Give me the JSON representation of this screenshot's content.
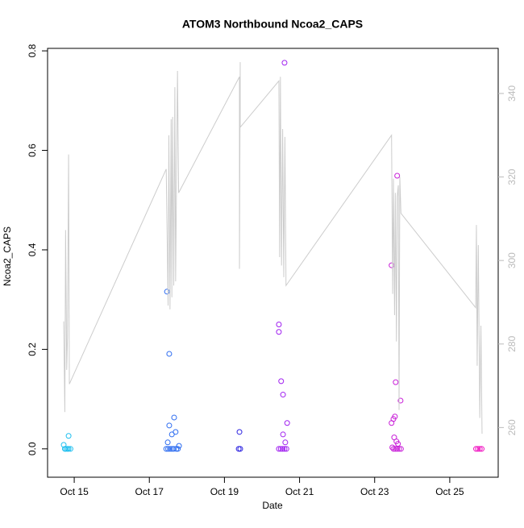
{
  "chart_data": {
    "type": "scatter",
    "title": "ATOM3 Northbound Ncoa2_CAPS",
    "x_label": "Date",
    "y_label": "Ncoa2_CAPS",
    "xlim": [
      14.29,
      26.29
    ],
    "xticks": [
      {
        "value": 15,
        "label": "Oct 15"
      },
      {
        "value": 17,
        "label": "Oct 17"
      },
      {
        "value": 19,
        "label": "Oct 19"
      },
      {
        "value": 21,
        "label": "Oct 21"
      },
      {
        "value": 23,
        "label": "Oct 23"
      },
      {
        "value": 25,
        "label": "Oct 25"
      }
    ],
    "ylim": [
      -0.057,
      0.805
    ],
    "yticks": [
      {
        "value": 0,
        "label": "0.0"
      },
      0.2,
      0.4,
      0.6,
      0.8
    ],
    "y2lim": [
      248.1,
      350.8
    ],
    "y2ticks": [
      260,
      280,
      300,
      320,
      340
    ],
    "y2_color": "#bbbbbb",
    "series": [
      {
        "type": "scatter",
        "color": "#1ebfef",
        "x": [
          14.72,
          14.75,
          14.78,
          14.82,
          14.85,
          14.85,
          14.9
        ],
        "values": [
          0.008,
          0,
          0,
          0,
          0,
          0.026,
          0
        ]
      },
      {
        "type": "scatter",
        "color": "#2a6af0",
        "x": [
          17.47,
          17.53,
          17.49,
          17.53,
          17.6,
          17.66,
          17.7,
          17.79,
          17.45,
          17.5,
          17.55,
          17.6,
          17.65,
          17.72,
          17.76
        ],
        "values": [
          0.316,
          0.191,
          0.013,
          0.047,
          0.029,
          0.063,
          0.034,
          0.006,
          0,
          0,
          0,
          0,
          0,
          0,
          0
        ]
      },
      {
        "type": "scatter",
        "color": "#2a20e0",
        "x": [
          19.4,
          19.38,
          19.42
        ],
        "values": [
          0.034,
          0,
          0
        ]
      },
      {
        "type": "scatter",
        "color": "#a020f0",
        "x": [
          20.45,
          20.45,
          20.51,
          20.56,
          20.56,
          20.62,
          20.67,
          20.6,
          20.45,
          20.5,
          20.55,
          20.6,
          20.65
        ],
        "values": [
          0.25,
          0.235,
          0.136,
          0.109,
          0.029,
          0.013,
          0.052,
          0.776,
          0,
          0,
          0,
          0,
          0
        ]
      },
      {
        "type": "scatter",
        "color": "#c81ed8",
        "x": [
          23.45,
          23.6,
          23.56,
          23.69,
          23.54,
          23.5,
          23.45,
          23.52,
          23.58,
          23.62,
          23.47,
          23.5,
          23.55,
          23.6,
          23.65,
          23.7
        ],
        "values": [
          0.369,
          0.549,
          0.134,
          0.097,
          0.065,
          0.06,
          0.052,
          0.023,
          0.015,
          0.01,
          0.003,
          0,
          0,
          0,
          0,
          0
        ]
      },
      {
        "type": "scatter",
        "color": "#f010c0",
        "x": [
          25.7,
          25.75,
          25.8,
          25.85
        ],
        "values": [
          0,
          0,
          0,
          0
        ]
      },
      {
        "type": "line",
        "axis": "y2",
        "color": "#cccccc",
        "x": [
          14.72,
          14.75,
          14.77,
          14.8,
          14.82,
          14.85,
          14.87,
          17.45,
          17.5,
          17.52,
          17.55,
          17.58,
          17.6,
          17.62,
          17.65,
          17.68,
          17.7,
          17.75,
          17.78,
          19.4,
          19.4,
          19.42,
          19.42,
          20.45,
          20.47,
          20.49,
          20.52,
          20.55,
          20.58,
          20.61,
          20.64,
          23.45,
          23.48,
          23.5,
          23.53,
          23.55,
          23.58,
          23.6,
          23.63,
          23.65,
          23.67,
          23.7,
          25.69,
          25.71,
          25.73,
          25.76,
          25.8,
          25.83,
          25.86
        ],
        "values": [
          285.4,
          263.7,
          307.3,
          273.8,
          281.5,
          325.4,
          270.4,
          321.9,
          289.2,
          330,
          288.3,
          333.8,
          291.2,
          334.4,
          294,
          341.5,
          295,
          345.4,
          316.2,
          344,
          298,
          347.5,
          331.9,
          343,
          300.8,
          344,
          298.8,
          331.5,
          296,
          329.6,
          294,
          330,
          292,
          319.6,
          286.9,
          316.2,
          280.6,
          315.2,
          318,
          264.2,
          320,
          311.3,
          288.7,
          308.5,
          274.8,
          303.7,
          262.3,
          284.4,
          258.5
        ]
      }
    ]
  }
}
